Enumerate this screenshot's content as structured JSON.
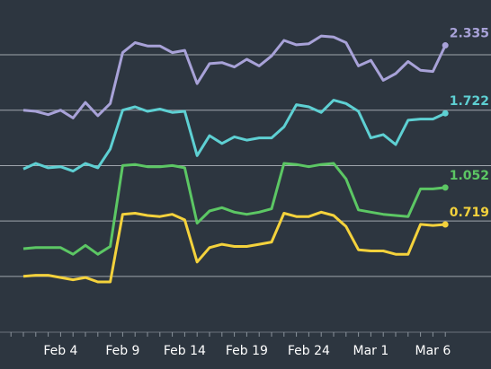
{
  "chart_data": {
    "type": "line",
    "background": "#2d3640",
    "grid_color": "#a0a6ad",
    "grid": true,
    "x_tick_labels": [
      "Feb 4",
      "Feb 9",
      "Feb 14",
      "Feb 19",
      "Feb 24",
      "Mar 1",
      "Mar 6"
    ],
    "x_tick_positions": [
      3,
      8,
      13,
      18,
      23,
      28,
      33
    ],
    "x_range": [
      -2,
      35
    ],
    "y_range": [
      -0.5,
      3.0
    ],
    "y_gridlines": [
      0.25,
      0.75,
      1.25,
      1.75,
      2.25,
      2.75
    ],
    "series": [
      {
        "color": "#a8a2d8",
        "end_label": "2.335",
        "values": [
          1.75,
          1.74,
          1.71,
          1.75,
          1.68,
          1.82,
          1.7,
          1.81,
          2.27,
          2.36,
          2.33,
          2.33,
          2.27,
          2.29,
          1.99,
          2.17,
          2.18,
          2.14,
          2.21,
          2.15,
          2.24,
          2.38,
          2.34,
          2.35,
          2.42,
          2.41,
          2.36,
          2.15,
          2.2,
          2.02,
          2.08,
          2.19,
          2.11,
          2.1,
          2.335
        ]
      },
      {
        "color": "#5ed0d3",
        "end_label": "1.722",
        "values": [
          1.22,
          1.27,
          1.23,
          1.24,
          1.2,
          1.27,
          1.23,
          1.4,
          1.75,
          1.78,
          1.74,
          1.76,
          1.73,
          1.74,
          1.34,
          1.52,
          1.45,
          1.51,
          1.48,
          1.5,
          1.5,
          1.6,
          1.8,
          1.78,
          1.73,
          1.84,
          1.81,
          1.74,
          1.5,
          1.53,
          1.44,
          1.66,
          1.67,
          1.67,
          1.722
        ]
      },
      {
        "color": "#5cc764",
        "end_label": "1.052",
        "values": [
          0.5,
          0.51,
          0.51,
          0.51,
          0.45,
          0.53,
          0.45,
          0.52,
          1.25,
          1.26,
          1.24,
          1.24,
          1.25,
          1.23,
          0.73,
          0.84,
          0.87,
          0.83,
          0.81,
          0.83,
          0.86,
          1.27,
          1.26,
          1.24,
          1.26,
          1.27,
          1.13,
          0.85,
          0.83,
          0.81,
          0.8,
          0.79,
          1.04,
          1.04,
          1.052
        ]
      },
      {
        "color": "#f4d23c",
        "end_label": "0.719",
        "values": [
          0.25,
          0.26,
          0.26,
          0.24,
          0.22,
          0.24,
          0.2,
          0.2,
          0.81,
          0.82,
          0.8,
          0.79,
          0.81,
          0.76,
          0.38,
          0.51,
          0.54,
          0.52,
          0.52,
          0.54,
          0.56,
          0.82,
          0.79,
          0.79,
          0.83,
          0.8,
          0.7,
          0.49,
          0.48,
          0.48,
          0.45,
          0.45,
          0.72,
          0.71,
          0.719
        ]
      }
    ]
  }
}
